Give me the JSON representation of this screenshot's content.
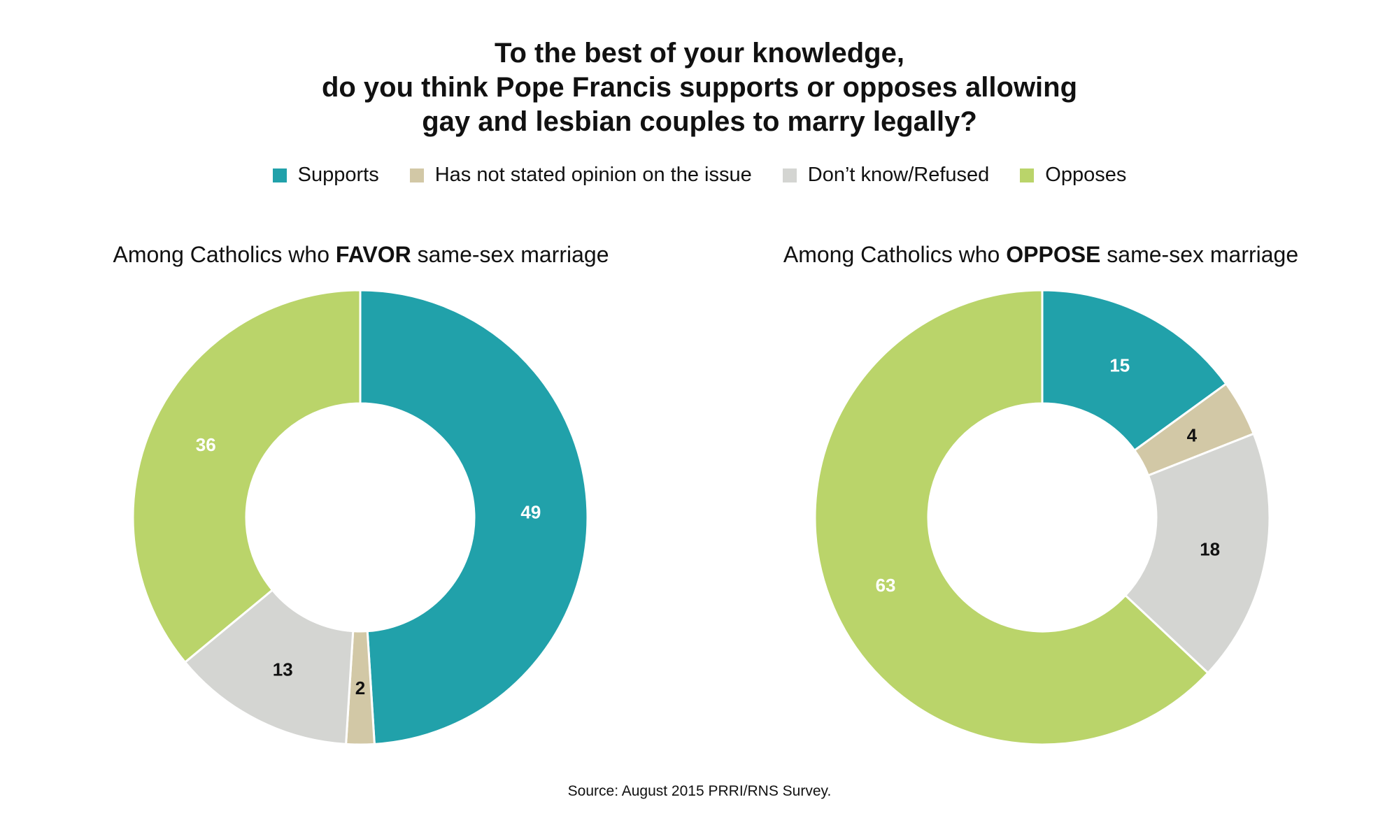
{
  "title_lines": [
    "To the best of your knowledge,",
    "do you think Pope Francis supports or opposes allowing",
    "gay and lesbian couples to marry legally?"
  ],
  "legend": [
    {
      "label": "Supports",
      "color": "#21A1AA"
    },
    {
      "label": "Has not stated opinion on the issue",
      "color": "#D2C8A6"
    },
    {
      "label": "Don’t know/Refused",
      "color": "#D4D5D2"
    },
    {
      "label": "Opposes",
      "color": "#BAD46A"
    }
  ],
  "source": "Source: August 2015 PRRI/RNS Survey.",
  "chart_data": [
    {
      "type": "pie",
      "title_parts": [
        "Among Catholics who ",
        "FAVOR",
        " same-sex marriage"
      ],
      "categories": [
        "Supports",
        "Has not stated opinion on the issue",
        "Don’t know/Refused",
        "Opposes"
      ],
      "values": [
        49,
        2,
        13,
        36
      ],
      "colors": [
        "#21A1AA",
        "#D2C8A6",
        "#D4D5D2",
        "#BAD46A"
      ],
      "label_colors": [
        "#ffffff",
        "#111111",
        "#111111",
        "#ffffff"
      ]
    },
    {
      "type": "pie",
      "title_parts": [
        "Among Catholics who ",
        "OPPOSE",
        " same-sex marriage"
      ],
      "categories": [
        "Supports",
        "Has not stated opinion on the issue",
        "Don’t know/Refused",
        "Opposes"
      ],
      "values": [
        15,
        4,
        18,
        63
      ],
      "colors": [
        "#21A1AA",
        "#D2C8A6",
        "#D4D5D2",
        "#BAD46A"
      ],
      "label_colors": [
        "#ffffff",
        "#111111",
        "#111111",
        "#ffffff"
      ]
    }
  ]
}
